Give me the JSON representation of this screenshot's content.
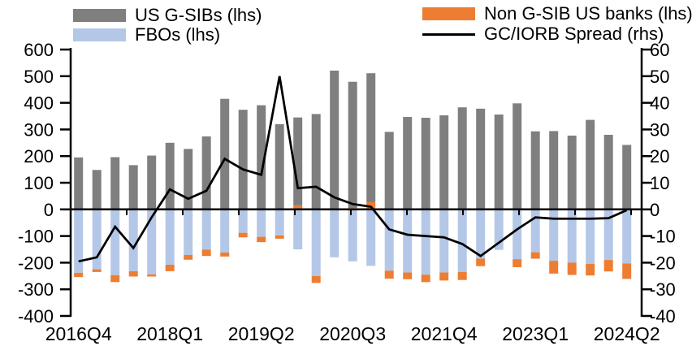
{
  "chart_data": {
    "type": "bar",
    "title": "",
    "xlabel": "",
    "ylabel_left": "",
    "ylabel_right": "",
    "ylim_left": [
      -400,
      600
    ],
    "ylim_right": [
      -40,
      60
    ],
    "left_ticks": [
      600,
      500,
      400,
      300,
      200,
      100,
      0,
      -100,
      -200,
      -300,
      -400
    ],
    "right_ticks": [
      60,
      50,
      40,
      30,
      20,
      10,
      0,
      -10,
      -20,
      -30,
      -40
    ],
    "x_tick_labels": [
      "2016Q4",
      "2018Q1",
      "2019Q2",
      "2020Q3",
      "2021Q4",
      "2023Q1",
      "2024Q2"
    ],
    "categories": [
      "2016Q4",
      "2017Q1",
      "2017Q2",
      "2017Q3",
      "2017Q4",
      "2018Q1",
      "2018Q2",
      "2018Q3",
      "2018Q4",
      "2019Q1",
      "2019Q2",
      "2019Q3",
      "2019Q4",
      "2020Q1",
      "2020Q2",
      "2020Q3",
      "2020Q4",
      "2021Q1",
      "2021Q2",
      "2021Q3",
      "2021Q4",
      "2022Q1",
      "2022Q2",
      "2022Q3",
      "2022Q4",
      "2023Q1",
      "2023Q2",
      "2023Q3",
      "2023Q4",
      "2024Q1",
      "2024Q2"
    ],
    "series": [
      {
        "name": "US G-SIBs (lhs)",
        "type": "bar",
        "axis": "left",
        "color": "#7f7f7f",
        "values": [
          195,
          148,
          196,
          166,
          202,
          250,
          227,
          274,
          415,
          374,
          391,
          320,
          345,
          358,
          521,
          479,
          511,
          291,
          347,
          344,
          353,
          383,
          378,
          356,
          398,
          293,
          294,
          277,
          336,
          280,
          242
        ]
      },
      {
        "name": "FBOs (lhs)",
        "type": "bar",
        "axis": "left",
        "color": "#b4c7e7",
        "values": [
          -238,
          -225,
          -247,
          -232,
          -244,
          -208,
          -171,
          -151,
          -162,
          -88,
          -103,
          -98,
          -150,
          -250,
          -180,
          -195,
          -212,
          -230,
          -237,
          -245,
          -237,
          -235,
          -185,
          -152,
          -187,
          -161,
          -193,
          -200,
          -205,
          -190,
          -203
        ]
      },
      {
        "name": "Non G-SIB US banks (lhs)",
        "type": "bar",
        "axis": "left",
        "color": "#ed7d31",
        "values": [
          -16,
          -10,
          -26,
          -20,
          -8,
          -24,
          -18,
          -24,
          -15,
          -17,
          -20,
          -12,
          15,
          -26,
          0,
          5,
          27,
          -30,
          -25,
          -28,
          -30,
          -30,
          -28,
          0,
          -30,
          -24,
          -48,
          -46,
          -43,
          -43,
          -58
        ]
      },
      {
        "name": "GC/IORB Spread (rhs)",
        "type": "line",
        "axis": "right",
        "color": "#000000",
        "values": [
          -19.5,
          -18,
          -6.5,
          -14.5,
          -3,
          7.5,
          4,
          7,
          19,
          15,
          13,
          50,
          8,
          8.5,
          4.5,
          2,
          1,
          -7.5,
          -9.5,
          -10,
          -10.5,
          -13,
          -17.5,
          -12.5,
          -7.5,
          -3,
          -3.5,
          -3.5,
          -3.5,
          -3.3,
          -0.3
        ]
      }
    ],
    "legend_position": "top",
    "grid": false,
    "axis_color": "#000000",
    "background_color": "#ffffff"
  }
}
